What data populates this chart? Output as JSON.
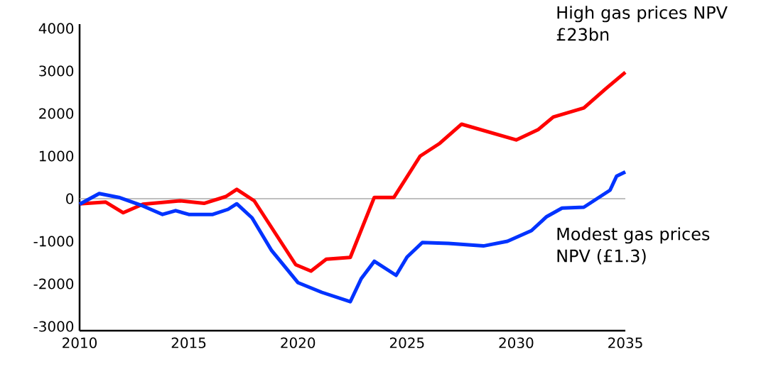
{
  "chart_data": {
    "type": "line",
    "annotations": [
      "High gas prices NPV £23bn",
      "Modest gas prices NPV (£1.3)"
    ],
    "xlim": [
      2010,
      2035
    ],
    "xticks": [
      2010,
      2015,
      2020,
      2025,
      2030,
      2035
    ],
    "ylim": [
      -3100,
      4100
    ],
    "yticks": [
      -3000,
      -2000,
      -1000,
      0,
      1000,
      2000,
      3000,
      4000
    ],
    "marker": "none",
    "line_style": "solid",
    "ref_lines": [
      {
        "axis": "y",
        "value": 0,
        "color": "#aaaaaa"
      }
    ],
    "series": [
      {
        "color": "#ff0000",
        "x": [
          2010,
          2011.2,
          2012,
          2012.9,
          2014.6,
          2015.7,
          2016.7,
          2017.2,
          2018,
          2019.9,
          2020.6,
          2021.3,
          2022.4,
          2023.5,
          2024.4,
          2025.6,
          2026.5,
          2027.5,
          2030,
          2031,
          2031.7,
          2033.1,
          2034.1,
          2035
        ],
        "values": [
          -120,
          -80,
          -330,
          -130,
          -50,
          -110,
          50,
          220,
          -50,
          -1550,
          -1700,
          -1420,
          -1380,
          30,
          30,
          1000,
          1300,
          1750,
          1380,
          1620,
          1920,
          2130,
          2580,
          2970
        ]
      },
      {
        "color": "#0033ff",
        "x": [
          2010,
          2010.9,
          2011.8,
          2012.9,
          2013.8,
          2014.4,
          2015,
          2016.1,
          2016.8,
          2017.2,
          2017.9,
          2018.8,
          2020,
          2021.1,
          2022.4,
          2022.9,
          2023.5,
          2024.5,
          2025,
          2025.7,
          2026.9,
          2028.5,
          2029.6,
          2030.7,
          2031.4,
          2032.1,
          2033.1,
          2034.3,
          2034.6,
          2035
        ],
        "values": [
          -130,
          120,
          30,
          -170,
          -370,
          -280,
          -370,
          -370,
          -250,
          -120,
          -450,
          -1220,
          -1970,
          -2200,
          -2420,
          -1880,
          -1470,
          -1800,
          -1370,
          -1030,
          -1050,
          -1110,
          -1000,
          -750,
          -420,
          -220,
          -200,
          200,
          530,
          630
        ]
      }
    ]
  }
}
